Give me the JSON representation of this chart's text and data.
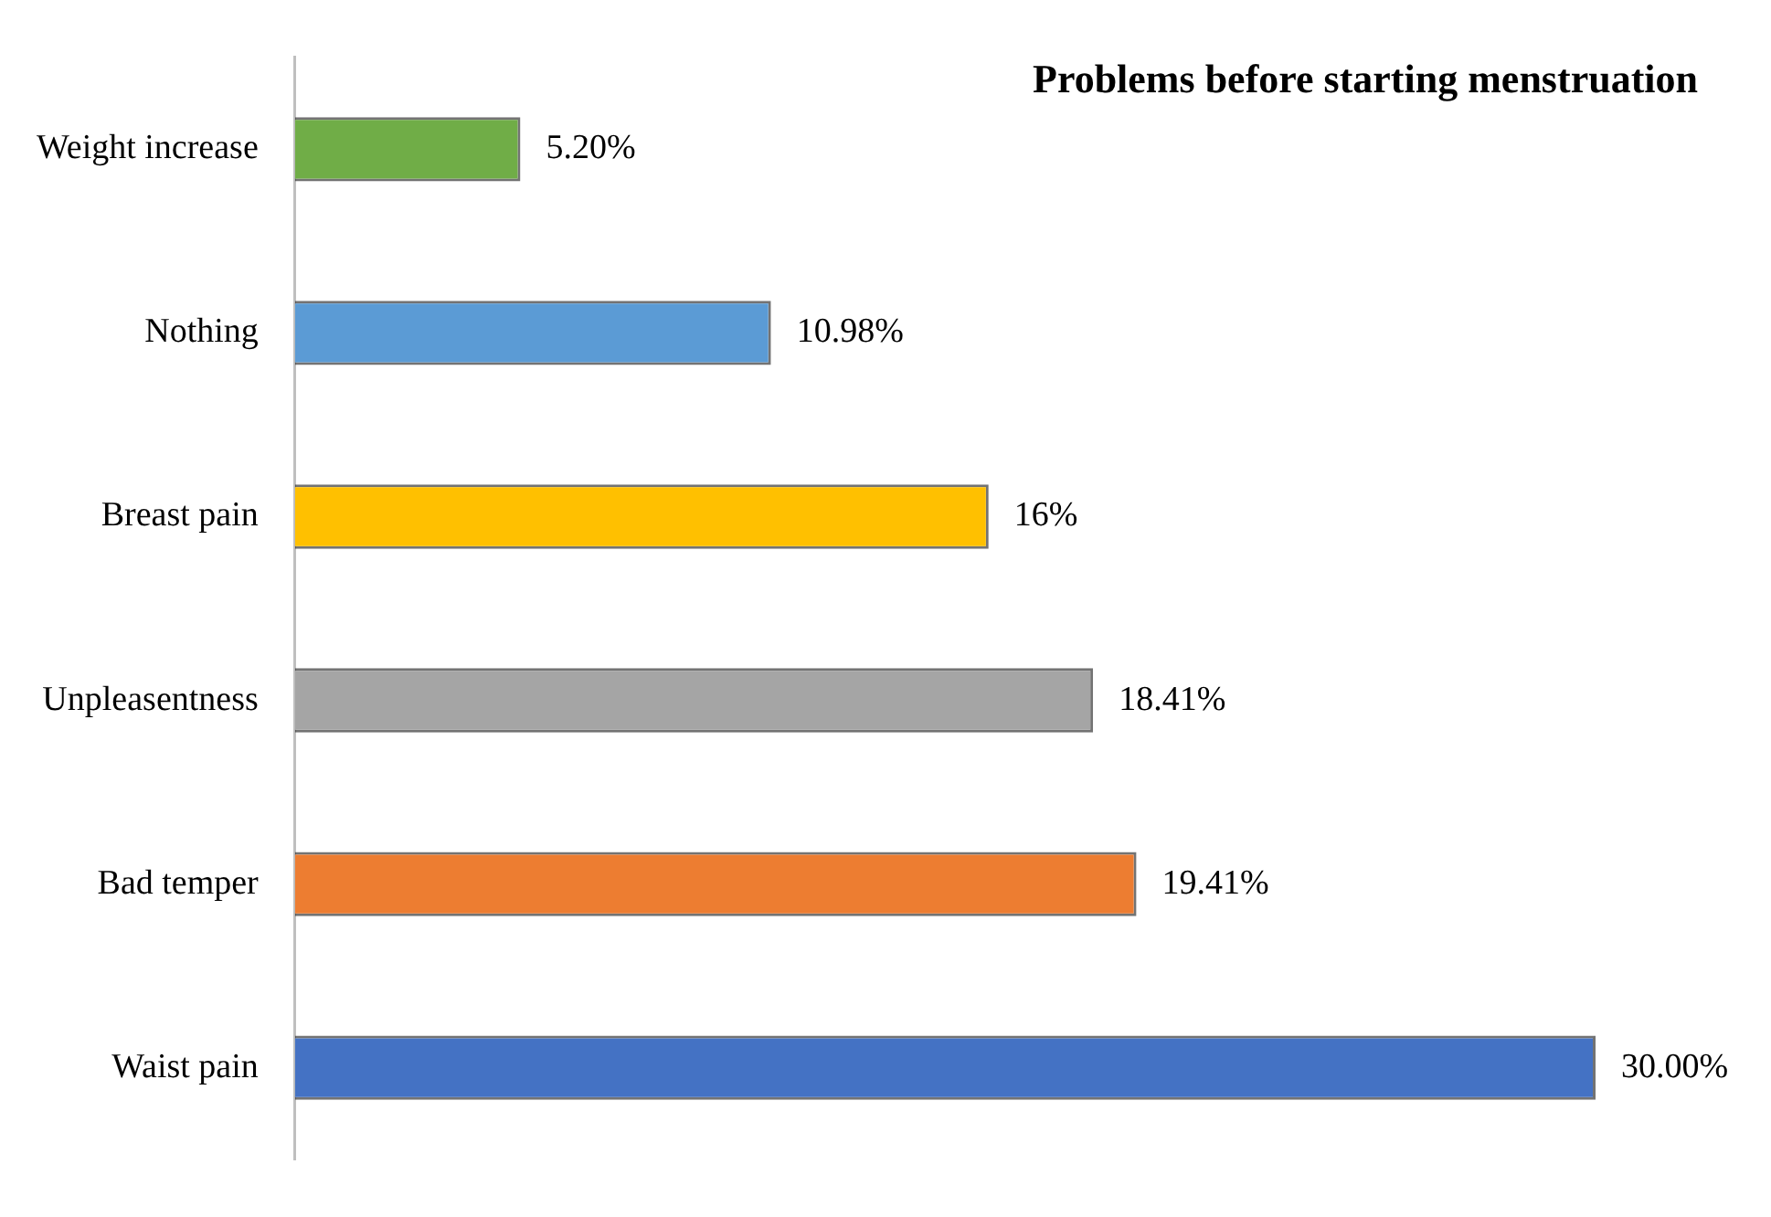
{
  "chart_data": {
    "type": "bar",
    "orientation": "horizontal",
    "title": "Problems before starting menstruation",
    "categories": [
      "Weight increase",
      "Nothing",
      "Breast pain",
      "Unpleasentness",
      "Bad temper",
      "Waist pain"
    ],
    "values": [
      5.2,
      10.98,
      16,
      18.41,
      19.41,
      30.0
    ],
    "colors": [
      "#70ad47",
      "#5b9bd5",
      "#ffc000",
      "#a5a5a5",
      "#ed7d31",
      "#4472c4"
    ],
    "value_labels": [
      "5.20%",
      "10.98%",
      "16%",
      "18.41%",
      "19.41%",
      "30.00%"
    ],
    "tick_labels": "y",
    "legend": false
  }
}
